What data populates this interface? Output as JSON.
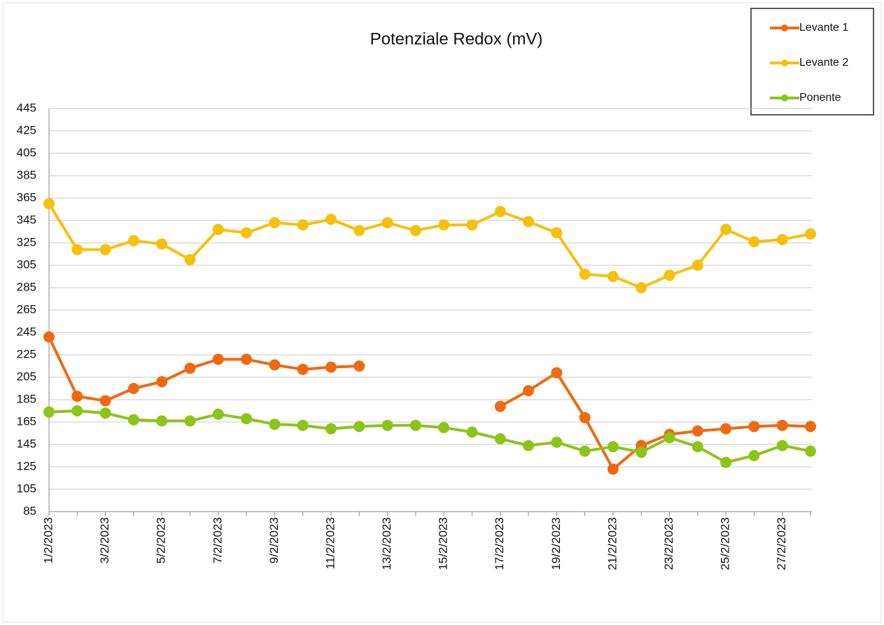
{
  "chart_data": {
    "type": "line",
    "title": "Potenziale Redox  (mV)",
    "categories": [
      "1/2/2023",
      null,
      "3/2/2023",
      null,
      "5/2/2023",
      null,
      "7/2/2023",
      null,
      "9/2/2023",
      null,
      "11/2/2023",
      null,
      "13/2/2023",
      null,
      "15/2/2023",
      null,
      "17/2/2023",
      null,
      "19/2/2023",
      null,
      "21/2/2023",
      null,
      "23/2/2023",
      null,
      "25/2/2023",
      null,
      "27/2/2023",
      null
    ],
    "series": [
      {
        "name": "Levante 1",
        "color": "#ee6a12",
        "values": [
          241,
          188,
          184,
          195,
          201,
          213,
          221,
          221,
          216,
          212,
          214,
          215,
          null,
          null,
          null,
          null,
          179,
          193,
          209,
          169,
          123,
          144,
          154,
          157,
          159,
          161,
          162,
          161
        ]
      },
      {
        "name": "Levante 2",
        "color": "#f5c10d",
        "values": [
          360,
          319,
          319,
          327,
          324,
          310,
          337,
          334,
          343,
          341,
          346,
          336,
          343,
          336,
          341,
          341,
          353,
          344,
          334,
          297,
          295,
          285,
          296,
          305,
          337,
          326,
          328,
          333
        ]
      },
      {
        "name": "Ponente",
        "color": "#8cc41a",
        "values": [
          174,
          175,
          173,
          167,
          166,
          166,
          172,
          168,
          163,
          162,
          159,
          161,
          162,
          162,
          160,
          156,
          150,
          144,
          147,
          139,
          143,
          138,
          151,
          143,
          129,
          135,
          144,
          139
        ]
      }
    ],
    "ylim": [
      85,
      445
    ],
    "yticks": [
      85,
      105,
      125,
      145,
      165,
      185,
      205,
      225,
      245,
      265,
      285,
      305,
      325,
      345,
      365,
      385,
      405,
      425,
      445
    ],
    "grid": true,
    "legend": "top-right"
  }
}
